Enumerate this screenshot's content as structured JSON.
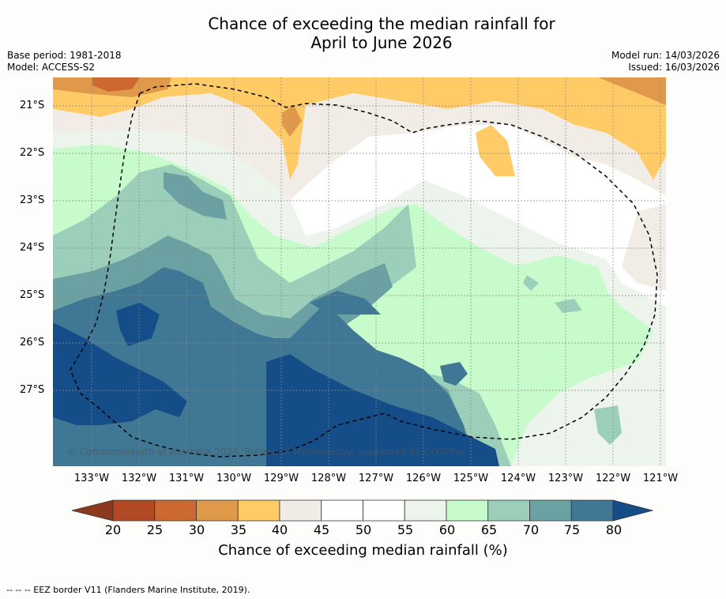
{
  "title_line1": "Chance of exceeding the median rainfall for",
  "title_line2": "April to June 2026",
  "meta": {
    "base_period": "Base period: 1981-2018",
    "model": "Model: ACCESS-S2",
    "model_run": "Model run: 14/03/2026",
    "issued": "Issued: 16/03/2026"
  },
  "map": {
    "lat_labels": [
      "21°S",
      "22°S",
      "23°S",
      "24°S",
      "25°S",
      "26°S",
      "27°S"
    ],
    "lon_labels": [
      "133°W",
      "132°W",
      "131°W",
      "130°W",
      "129°W",
      "128°W",
      "127°W",
      "126°W",
      "125°W",
      "124°W",
      "123°W",
      "122°W",
      "121°W"
    ],
    "credit": "© Commonwealth of Australia 2026, Bureau of Meteorology, supported by COSPPac"
  },
  "colorbar": {
    "ticks": [
      "20",
      "25",
      "30",
      "35",
      "40",
      "45",
      "50",
      "55",
      "60",
      "65",
      "70",
      "75",
      "80"
    ],
    "colors": [
      "#8c3a1e",
      "#b14a24",
      "#cc6832",
      "#e0984a",
      "#fecb66",
      "#f2ece6",
      "#ffffff",
      "#ffffff",
      "#ecf4ec",
      "#c8fbcb",
      "#9ccfb9",
      "#6ba1a2",
      "#3f7795",
      "#154d89"
    ],
    "label": "Chance of exceeding median rainfall (%)"
  },
  "footer": "--  --  -- EEZ border V11 (Flanders Marine Institute, 2019)."
}
